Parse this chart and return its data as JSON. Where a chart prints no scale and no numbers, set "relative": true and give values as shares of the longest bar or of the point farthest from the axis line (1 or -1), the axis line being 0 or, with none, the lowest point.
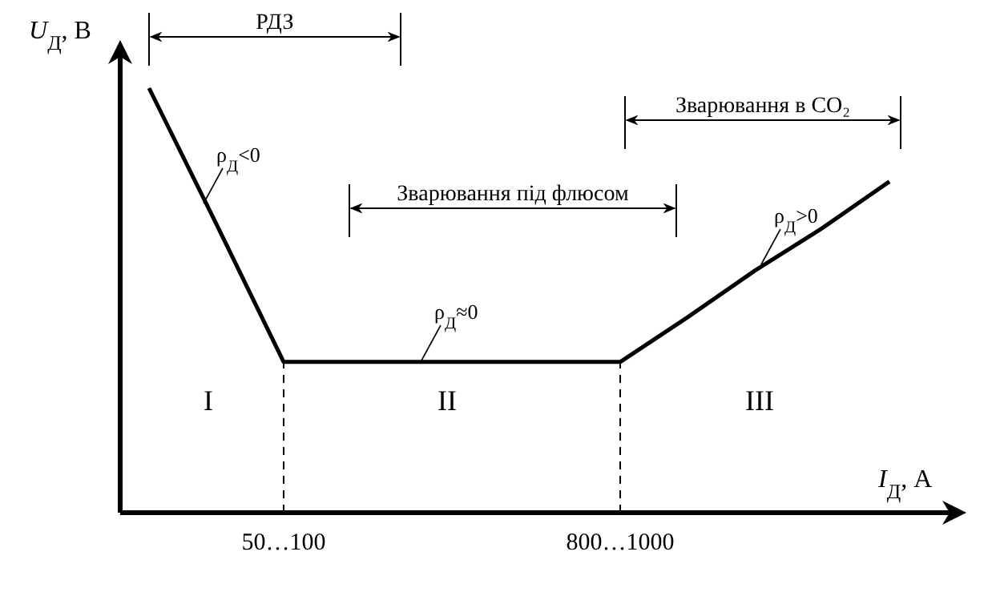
{
  "chart_data": {
    "type": "line",
    "relative": true,
    "xlabel": "I$_{Д}$, А",
    "ylabel": "U$_{Д}$, В",
    "categories": [
      null,
      null,
      "50…100",
      null,
      null,
      null,
      null,
      "800…1000",
      null,
      null,
      null,
      null
    ],
    "tick_labels": "x",
    "marker": "none",
    "line_style": "solid",
    "series": [
      {
        "color": "#000000",
        "values": [
          1,
          0.68,
          0.355,
          0.355,
          0.355,
          0.355,
          0.355,
          0.355,
          0.46,
          0.57,
          0.67,
          0.78
        ]
      }
    ],
    "ref_lines": [
      {
        "axis": "x",
        "value": "50…100",
        "label": null,
        "color": "#000000",
        "line_style": "dashed"
      },
      {
        "axis": "x",
        "value": "800…1000",
        "label": null,
        "color": "#000000",
        "line_style": "dashed"
      }
    ],
    "annotations": [
      "РДЗ",
      "Зварювання під флюсом",
      "Зварювання в CO₂",
      "ρ$_{Д}$<0",
      "ρ$_{Д}$≈0",
      "ρ$_{Д}$>0",
      "I",
      "II",
      "III"
    ]
  }
}
